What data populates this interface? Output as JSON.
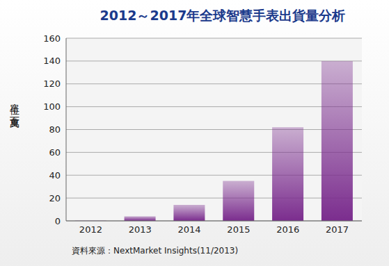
{
  "chart_data": {
    "type": "bar",
    "title": "2012～2017年全球智慧手表出貨量分析",
    "y_label": "單位：百萬支",
    "source": "資料來源：NextMarket Insights(11/2013)",
    "categories": [
      "2012",
      "2013",
      "2014",
      "2015",
      "2016",
      "2017"
    ],
    "values": [
      0.3,
      4,
      14,
      35,
      82,
      140
    ],
    "color": "#7b2d8e",
    "ylim": [
      0,
      160
    ],
    "yticks": [
      0,
      20,
      40,
      60,
      80,
      100,
      120,
      140,
      160
    ],
    "grid": true
  }
}
